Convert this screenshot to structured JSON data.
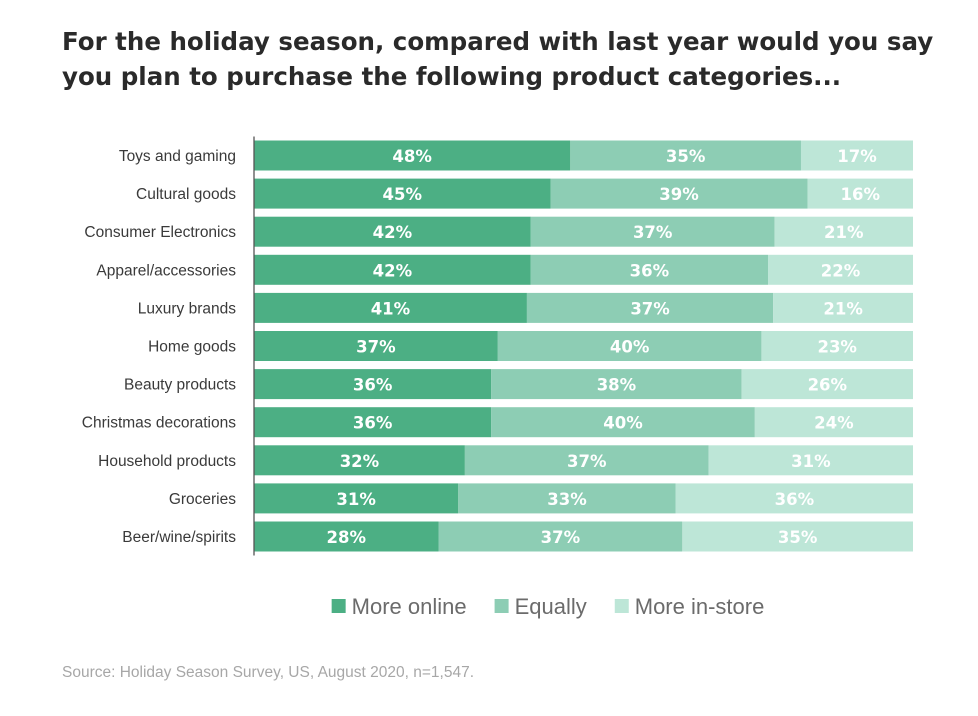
{
  "title": "For the holiday season, compared with last year would you say you plan to purchase the following product categories...",
  "source": "Source: Holiday Season Survey, US, August 2020, n=1,547.",
  "colors": {
    "more_online": "#4caf84",
    "equally": "#8dcdb4",
    "more_in_store": "#bde6d7",
    "axis": "#555555",
    "category_text": "#3a3a3a",
    "legend_text": "#6b6b6b",
    "value_text": "#ffffff"
  },
  "chart_data": {
    "type": "bar",
    "orientation": "horizontal",
    "stacked": true,
    "percent_stacked": true,
    "categories": [
      "Toys and gaming",
      "Cultural goods",
      "Consumer Electronics",
      "Apparel/accessories",
      "Luxury brands",
      "Home goods",
      "Beauty products",
      "Christmas decorations",
      "Household products",
      "Groceries",
      "Beer/wine/spirits"
    ],
    "series": [
      {
        "name": "More online",
        "values": [
          48,
          45,
          42,
          42,
          41,
          37,
          36,
          36,
          32,
          31,
          28
        ]
      },
      {
        "name": "Equally",
        "values": [
          35,
          39,
          37,
          36,
          37,
          40,
          38,
          40,
          37,
          33,
          37
        ]
      },
      {
        "name": "More in-store",
        "values": [
          17,
          16,
          21,
          22,
          21,
          23,
          26,
          24,
          31,
          36,
          35
        ]
      }
    ],
    "value_suffix": "%",
    "legend_position": "bottom",
    "grid": false
  }
}
